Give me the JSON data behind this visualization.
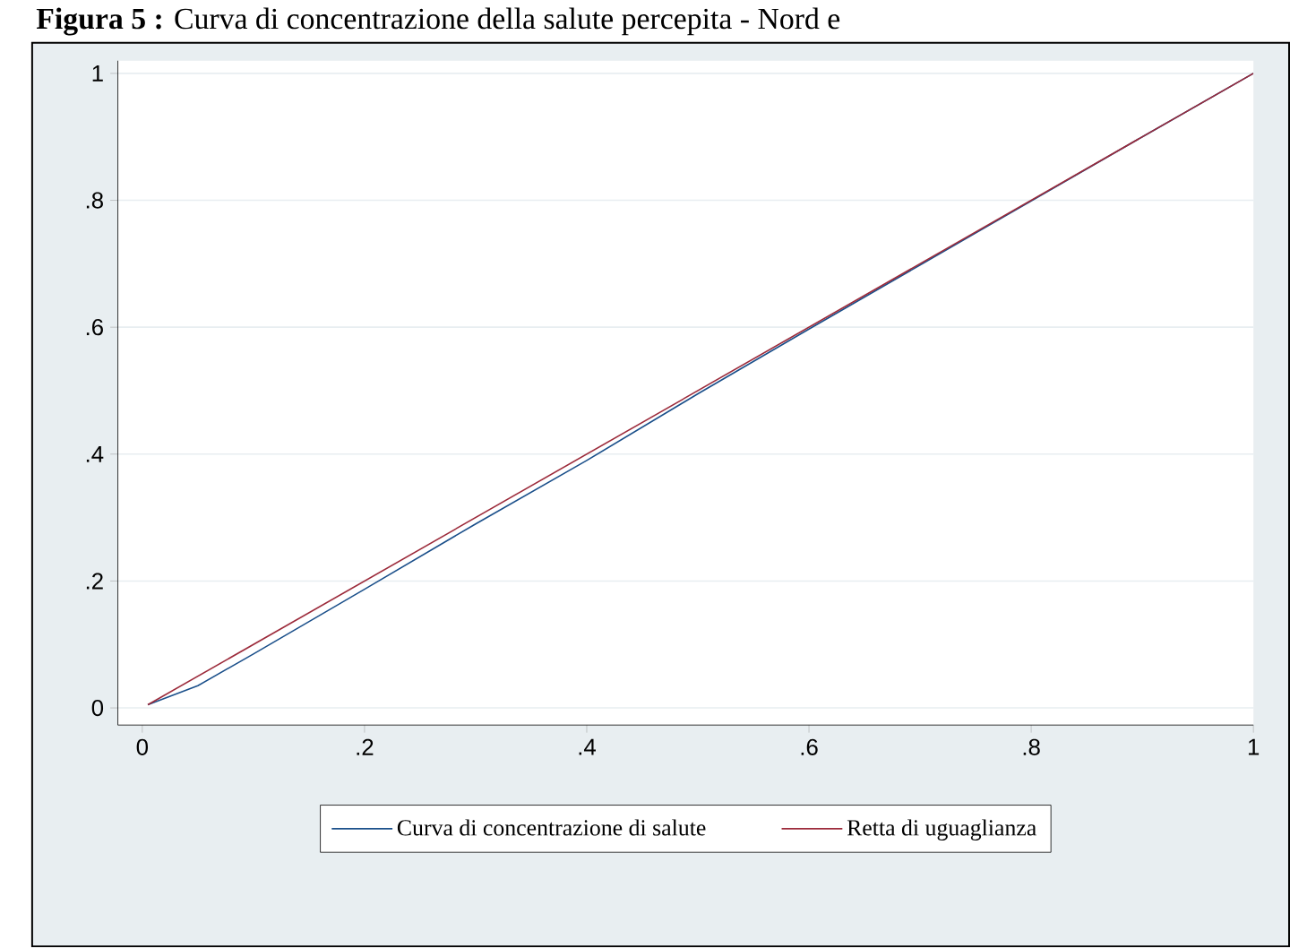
{
  "chart_data": {
    "type": "line",
    "title": "**Figura 5 :** Curva di concentrazione della salute percepita - Nord e",
    "series": [
      {
        "name": "Curva di concentrazione di salute",
        "color": "#1a4f8a",
        "x": [
          0.005,
          0.05,
          0.1,
          0.2,
          0.3,
          0.4,
          0.5,
          0.6,
          0.7,
          0.8,
          0.9,
          1
        ],
        "values": [
          0.005,
          0.035,
          0.085,
          0.187,
          0.29,
          0.39,
          0.495,
          0.597,
          0.698,
          0.799,
          0.9,
          1
        ]
      },
      {
        "name": "Retta di uguaglianza",
        "color": "#9c2a3a",
        "x": [
          0.005,
          1
        ],
        "values": [
          0.005,
          1
        ]
      }
    ],
    "xlim": [
      -0.022,
      1.0
    ],
    "ylim": [
      -0.027,
      1.02
    ],
    "xticks": [
      0,
      {
        "value": 0.2,
        "label": ".2"
      },
      {
        "value": 0.4,
        "label": ".4"
      },
      {
        "value": 0.6,
        "label": ".6"
      },
      {
        "value": 0.8,
        "label": ".8"
      },
      1
    ],
    "yticks": [
      0,
      {
        "value": 0.2,
        "label": ".2"
      },
      {
        "value": 0.4,
        "label": ".4"
      },
      {
        "value": 0.6,
        "label": ".6"
      },
      {
        "value": 0.8,
        "label": ".8"
      },
      1
    ],
    "grid": "y",
    "legend": "bottom"
  }
}
